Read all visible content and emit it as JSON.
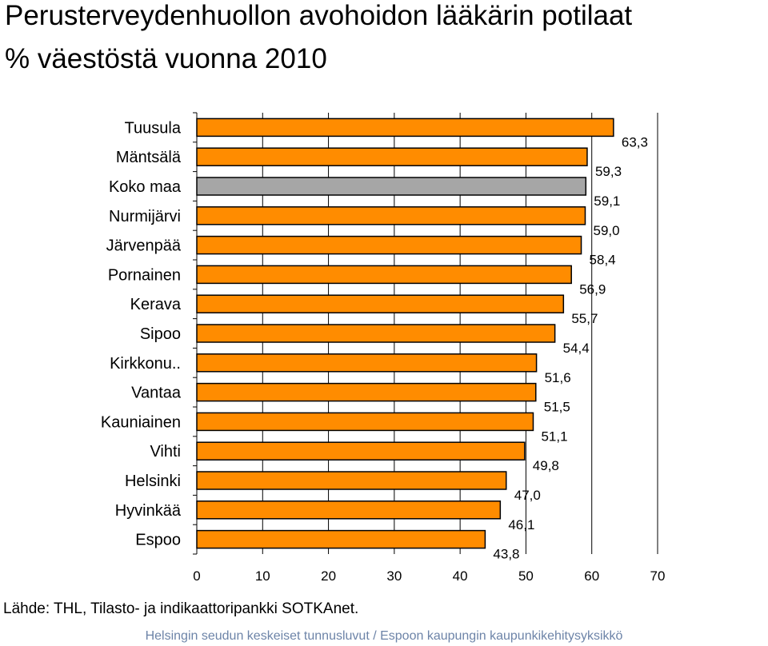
{
  "header": {
    "title_line1": "Perusterveydenhuollon avohoidon lääkärin potilaat",
    "title_line2": "% väestöstä vuonna 2010"
  },
  "chart_data": {
    "type": "bar",
    "orientation": "horizontal",
    "title": "Perusterveydenhuollon avohoidon lääkärin potilaat % väestöstä vuonna 2010",
    "categories": [
      "Tuusula",
      "Mäntsälä",
      "Koko maa",
      "Nurmijärvi",
      "Järvenpää",
      "Pornainen",
      "Kerava",
      "Sipoo",
      "Kirkkonu..",
      "Vantaa",
      "Kauniainen",
      "Vihti",
      "Helsinki",
      "Hyvinkää",
      "Espoo"
    ],
    "values": [
      63.3,
      59.3,
      59.1,
      59.0,
      58.4,
      56.9,
      55.7,
      54.4,
      51.6,
      51.5,
      51.1,
      49.8,
      47.0,
      46.1,
      43.8
    ],
    "value_labels": [
      "63,3",
      "59,3",
      "59,1",
      "59,0",
      "58,4",
      "56,9",
      "55,7",
      "54,4",
      "51,6",
      "51,5",
      "51,1",
      "49,8",
      "47,0",
      "46,1",
      "43,8"
    ],
    "highlight_category": "Koko maa",
    "colors": {
      "bar": "#ff8c00",
      "highlight": "#a6a6a6",
      "outline": "#000000"
    },
    "xlim": [
      0,
      70
    ],
    "xticks": [
      0,
      10,
      20,
      30,
      40,
      50,
      60,
      70
    ],
    "xtick_labels": [
      "0",
      "10",
      "20",
      "30",
      "40",
      "50",
      "60",
      "70"
    ],
    "gridlines": true,
    "xlabel": "",
    "ylabel": ""
  },
  "source": "Lähde: THL, Tilasto- ja indikaattoripankki SOTKAnet.",
  "footer": "Helsingin seudun keskeiset tunnusluvut / Espoon kaupungin kaupunkikehitysyksikkö"
}
